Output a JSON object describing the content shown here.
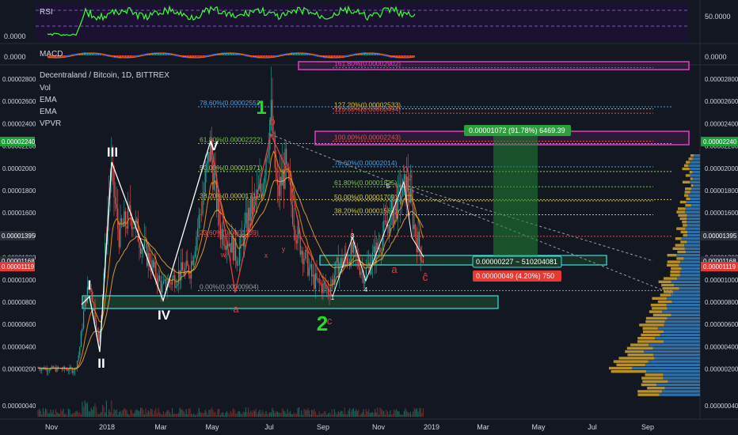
{
  "header": {
    "title": "Decentraland / Bitcoin, 1D, BITTREX",
    "indicators": [
      "Vol",
      "EMA",
      "EMA",
      "VPVR"
    ]
  },
  "rsi_panel": {
    "label": "RSI",
    "scale_label": "50.0000",
    "zero_label": "0.0000"
  },
  "macd_panel": {
    "label": "MACD",
    "scale_label": "0.0000",
    "zero_label": "0.0000"
  },
  "colors": {
    "background": "#131722",
    "up_candle": "#26a69a",
    "down_candle": "#ef5350",
    "rsi_line": "#3aff3a",
    "wave_white": "#ffffff",
    "wave_green": "#22dd22",
    "wave_red": "#e04040",
    "box_cyan": "#3fe0e0",
    "box_magenta": "#e040c0",
    "long_position": "#1b5e20",
    "ema_fast": "#e08a00",
    "ema_slow": "#ffb74d",
    "vpvr_up": "#2f6fa8",
    "vpvr_down": "#b8902a"
  },
  "chart_data": {
    "type": "candlestick",
    "title": "Decentraland / Bitcoin, 1D, BITTREX",
    "ylim": [
      4e-07,
      2.9e-06
    ],
    "y_tick_labels": [
      "0.00002800",
      "0.00002600",
      "0.00002400",
      "0.00002200",
      "0.00002000",
      "0.00001800",
      "0.00001600",
      "0.00001400",
      "0.00001200",
      "0.00001000",
      "0.00000800",
      "0.00000600",
      "0.00000400",
      "0.00000200",
      "0.00000040"
    ],
    "x_tick_labels": [
      "Nov",
      "2018",
      "Mar",
      "May",
      "Jul",
      "Sep",
      "Nov",
      "2019",
      "Mar",
      "May",
      "Jul",
      "Sep"
    ],
    "price_labels": [
      {
        "text": "0.00002240",
        "value": 2.24e-05
      },
      {
        "text": "0.00001395",
        "value": 1.395e-05
      },
      {
        "text": "0.00001168",
        "value": 1.168e-05
      },
      {
        "text": "0.00001119",
        "value": 1.119e-05
      }
    ],
    "fib_levels_large": [
      {
        "label": "78.60%(0.00002552)",
        "value": 2.552e-05
      },
      {
        "label": "61.80%(0.00002222)",
        "value": 2.222e-05
      },
      {
        "label": "50.00%(0.00001971)",
        "value": 1.971e-05
      },
      {
        "label": "38.20%(0.00001719)",
        "value": 1.719e-05
      },
      {
        "label": "23.60%(0.0000139)",
        "value": 1.39e-05
      },
      {
        "label": "0.00%(0.00000904)",
        "value": 9.04e-06
      }
    ],
    "fib_levels_small": [
      {
        "label": "161.80%(0.00002902)",
        "value": 2.902e-05
      },
      {
        "label": "127.20%(0.00002533)",
        "value": 2.533e-05
      },
      {
        "label": "123.60%(0.00002494)",
        "value": 2.494e-05
      },
      {
        "label": "100.00%(0.00002243)",
        "value": 2.243e-05
      },
      {
        "label": "78.60%(0.00002014)",
        "value": 2.014e-05
      },
      {
        "label": "61.80%(0.00001835)",
        "value": 1.835e-05
      },
      {
        "label": "50.00%(0.00001709)",
        "value": 1.709e-05
      },
      {
        "label": "38.20%(0.00001584)",
        "value": 1.584e-05
      }
    ],
    "position_tool": {
      "profit_label": "0.00001072 (91.78%) 6469.39",
      "entry_label": "0.00000227 ~ 510204081",
      "loss_label": "0.00000049 (4.20%) 750"
    },
    "wave_labels_major": [
      "I",
      "II",
      "III",
      "IV",
      "V"
    ],
    "wave_labels_cycle": [
      "1",
      "2"
    ],
    "wave_labels_minor": [
      "b",
      "a",
      "c",
      "x",
      "w",
      "y",
      "1",
      "2",
      "3",
      "4",
      "5",
      "ĉ"
    ],
    "grid": false,
    "legend": "top-left"
  }
}
